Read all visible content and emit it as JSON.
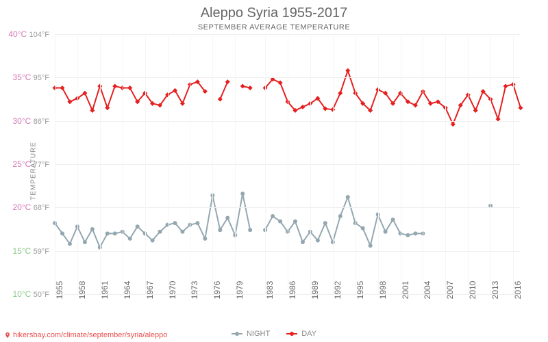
{
  "title": "Aleppo Syria 1955-2017",
  "subtitle": "SEPTEMBER AVERAGE TEMPERATURE",
  "y_axis_label": "TEMPERATURE",
  "attribution": {
    "text": "hikersbay.com/climate/september/syria/aleppo",
    "pin_color": "#e85050"
  },
  "chart": {
    "type": "line",
    "background_color": "#ffffff",
    "grid_color": "#efefef",
    "ylim_c": [
      10,
      40
    ],
    "y_ticks": [
      {
        "c": "10°C",
        "f": "50°F",
        "value": 10,
        "color": "#8bc98b"
      },
      {
        "c": "15°C",
        "f": "59°F",
        "value": 15,
        "color": "#8bc98b"
      },
      {
        "c": "20°C",
        "f": "68°F",
        "value": 20,
        "color": "#d676b8"
      },
      {
        "c": "25°C",
        "f": "77°F",
        "value": 25,
        "color": "#d676b8"
      },
      {
        "c": "30°C",
        "f": "86°F",
        "value": 30,
        "color": "#d676b8"
      },
      {
        "c": "35°C",
        "f": "95°F",
        "value": 35,
        "color": "#d676b8"
      },
      {
        "c": "40°C",
        "f": "104°F",
        "value": 40,
        "color": "#d676b8"
      }
    ],
    "x_range": [
      1955,
      2017
    ],
    "x_ticks": [
      1955,
      1958,
      1961,
      1964,
      1967,
      1970,
      1973,
      1976,
      1979,
      1983,
      1986,
      1989,
      1992,
      1995,
      1998,
      2001,
      2004,
      2007,
      2010,
      2013,
      2016
    ],
    "series": {
      "day": {
        "label": "DAY",
        "color": "#e62020",
        "marker": "diamond",
        "marker_size": 5,
        "line_width": 2,
        "segments": [
          {
            "years": [
              1955,
              1956,
              1957,
              1958,
              1959,
              1960,
              1961,
              1962,
              1963,
              1964,
              1965,
              1966,
              1967,
              1968,
              1969,
              1970,
              1971,
              1972,
              1973,
              1974,
              1975
            ],
            "values": [
              33.8,
              33.8,
              32.2,
              32.6,
              33.2,
              31.2,
              34.0,
              31.5,
              34.0,
              33.8,
              33.8,
              32.2,
              33.2,
              32.0,
              31.8,
              33.0,
              33.5,
              32.0,
              34.2,
              34.5,
              33.4
            ]
          },
          {
            "years": [
              1977,
              1978
            ],
            "values": [
              32.5,
              34.5
            ]
          },
          {
            "years": [
              1980,
              1981
            ],
            "values": [
              34.0,
              33.8
            ]
          },
          {
            "years": [
              1983,
              1984,
              1985,
              1986,
              1987,
              1988,
              1989,
              1990,
              1991,
              1992,
              1993,
              1994,
              1995,
              1996,
              1997,
              1998,
              1999,
              2000,
              2001,
              2002,
              2003,
              2004,
              2005,
              2006,
              2007,
              2008,
              2009,
              2010,
              2011,
              2012,
              2013,
              2014,
              2015,
              2016,
              2017
            ],
            "values": [
              33.8,
              34.8,
              34.4,
              32.2,
              31.2,
              31.6,
              32.0,
              32.6,
              31.4,
              31.3,
              33.2,
              35.8,
              33.2,
              32.0,
              31.2,
              33.6,
              33.2,
              32.0,
              33.2,
              32.2,
              31.8,
              33.4,
              32.0,
              32.2,
              31.5,
              29.6,
              31.8,
              33.0,
              31.2,
              33.4,
              32.5,
              30.2,
              34.0,
              34.2,
              31.5
            ]
          }
        ]
      },
      "night": {
        "label": "NIGHT",
        "color": "#93a7b0",
        "marker": "circle",
        "marker_size": 4,
        "line_width": 2,
        "segments": [
          {
            "years": [
              1955,
              1956,
              1957,
              1958,
              1959,
              1960,
              1961,
              1962,
              1963,
              1964,
              1965,
              1966,
              1967,
              1968,
              1969,
              1970,
              1971,
              1972,
              1973,
              1974,
              1975,
              1976,
              1977,
              1978,
              1979,
              1980,
              1981
            ],
            "values": [
              18.2,
              17.0,
              15.8,
              17.8,
              16.0,
              17.5,
              15.4,
              17.0,
              17.0,
              17.2,
              16.4,
              17.8,
              17.0,
              16.2,
              17.2,
              18.0,
              18.2,
              17.2,
              18.0,
              18.2,
              16.4,
              21.4,
              17.4,
              18.8,
              16.8,
              21.6,
              17.4
            ]
          },
          {
            "years": [
              1983,
              1984,
              1985,
              1986,
              1987,
              1988,
              1989,
              1990,
              1991,
              1992,
              1993,
              1994,
              1995,
              1996,
              1997,
              1998,
              1999,
              2000,
              2001,
              2002,
              2003,
              2004
            ],
            "values": [
              17.4,
              19.0,
              18.4,
              17.2,
              18.4,
              16.0,
              17.2,
              16.2,
              18.2,
              16.0,
              19.0,
              21.2,
              18.2,
              17.6,
              15.6,
              19.2,
              17.2,
              18.6,
              17.0,
              16.8,
              17.0,
              17.0
            ]
          },
          {
            "years": [
              2013
            ],
            "values": [
              20.2
            ]
          }
        ]
      }
    },
    "legend_order": [
      "night",
      "day"
    ]
  }
}
